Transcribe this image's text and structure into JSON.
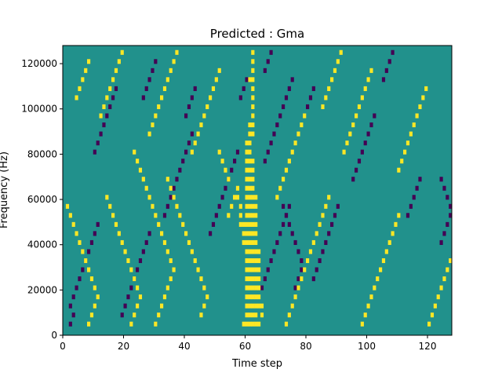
{
  "chart_data": {
    "type": "heatmap",
    "title": "Predicted : Gma",
    "xlabel": "Time step",
    "ylabel": "Frequency (Hz)",
    "xlim": [
      0,
      128
    ],
    "ylim": [
      0,
      128000
    ],
    "x_ticks": [
      0,
      20,
      40,
      60,
      80,
      100,
      120
    ],
    "y_ticks": [
      0,
      20000,
      40000,
      60000,
      80000,
      100000,
      120000
    ],
    "x_tick_labels": [
      "0",
      "20",
      "40",
      "60",
      "80",
      "100",
      "120"
    ],
    "y_tick_labels": [
      "0",
      "20000",
      "40000",
      "60000",
      "80000",
      "100000",
      "120000"
    ],
    "grid": false,
    "colors": {
      "low": "#440154",
      "mid": "#21918c",
      "high": "#fde725"
    },
    "background_value": 0,
    "value_levels": [
      -1,
      0,
      1
    ],
    "n_time_steps": 128,
    "n_freq_bins": 64,
    "high_cells": [
      [
        59,
        2
      ],
      [
        60,
        2
      ],
      [
        61,
        2
      ],
      [
        62,
        2
      ],
      [
        63,
        2
      ],
      [
        64,
        2
      ],
      [
        60,
        4
      ],
      [
        61,
        4
      ],
      [
        62,
        4
      ],
      [
        63,
        4
      ],
      [
        60,
        6
      ],
      [
        61,
        6
      ],
      [
        62,
        6
      ],
      [
        63,
        6
      ],
      [
        60,
        8
      ],
      [
        61,
        8
      ],
      [
        62,
        8
      ],
      [
        63,
        8
      ],
      [
        60,
        10
      ],
      [
        61,
        10
      ],
      [
        62,
        10
      ],
      [
        63,
        10
      ],
      [
        60,
        12
      ],
      [
        61,
        12
      ],
      [
        62,
        12
      ],
      [
        63,
        12
      ],
      [
        60,
        14
      ],
      [
        61,
        14
      ],
      [
        62,
        14
      ],
      [
        63,
        14
      ],
      [
        60,
        16
      ],
      [
        61,
        16
      ],
      [
        62,
        16
      ],
      [
        63,
        16
      ],
      [
        60,
        18
      ],
      [
        61,
        18
      ],
      [
        62,
        18
      ],
      [
        63,
        18
      ],
      [
        60,
        20
      ],
      [
        61,
        20
      ],
      [
        62,
        20
      ],
      [
        63,
        20
      ],
      [
        60,
        22
      ],
      [
        61,
        22
      ],
      [
        62,
        22
      ],
      [
        60,
        24
      ],
      [
        61,
        24
      ],
      [
        62,
        24
      ],
      [
        60,
        26
      ],
      [
        61,
        26
      ],
      [
        62,
        26
      ],
      [
        60,
        28
      ],
      [
        61,
        28
      ],
      [
        62,
        28
      ],
      [
        60,
        30
      ],
      [
        61,
        30
      ],
      [
        62,
        30
      ],
      [
        60,
        32
      ],
      [
        61,
        32
      ],
      [
        62,
        32
      ],
      [
        60,
        34
      ],
      [
        61,
        34
      ],
      [
        62,
        34
      ],
      [
        60,
        36
      ],
      [
        61,
        36
      ],
      [
        62,
        36
      ],
      [
        60,
        38
      ],
      [
        61,
        38
      ],
      [
        62,
        38
      ],
      [
        60,
        40
      ],
      [
        61,
        40
      ],
      [
        60,
        42
      ],
      [
        61,
        42
      ],
      [
        61,
        44
      ],
      [
        61,
        46
      ],
      [
        62,
        44
      ],
      [
        62,
        46
      ],
      [
        62,
        48
      ],
      [
        62,
        50
      ],
      [
        62,
        52
      ],
      [
        63,
        22
      ],
      [
        63,
        24
      ],
      [
        63,
        26
      ],
      [
        63,
        28
      ],
      [
        63,
        30
      ],
      [
        64,
        6
      ],
      [
        64,
        8
      ],
      [
        64,
        10
      ],
      [
        64,
        12
      ],
      [
        64,
        14
      ],
      [
        64,
        16
      ],
      [
        64,
        18
      ],
      [
        65,
        4
      ],
      [
        65,
        6
      ],
      [
        59,
        20
      ],
      [
        59,
        22
      ],
      [
        59,
        24
      ],
      [
        57,
        30
      ],
      [
        57,
        32
      ],
      [
        58,
        24
      ],
      [
        58,
        26
      ],
      [
        58,
        28
      ],
      [
        62,
        54
      ],
      [
        61,
        56
      ],
      [
        62,
        56
      ],
      [
        62,
        58
      ],
      [
        62,
        60
      ],
      [
        62,
        62
      ],
      [
        30,
        2
      ],
      [
        31,
        4
      ],
      [
        32,
        6
      ],
      [
        33,
        8
      ],
      [
        34,
        10
      ],
      [
        35,
        12
      ],
      [
        36,
        14
      ],
      [
        35,
        16
      ],
      [
        34,
        18
      ],
      [
        33,
        20
      ],
      [
        32,
        22
      ],
      [
        31,
        24
      ],
      [
        30,
        26
      ],
      [
        29,
        28
      ],
      [
        28,
        30
      ],
      [
        27,
        32
      ],
      [
        26,
        34
      ],
      [
        25,
        36
      ],
      [
        24,
        38
      ],
      [
        23,
        40
      ],
      [
        22,
        2
      ],
      [
        23,
        4
      ],
      [
        24,
        6
      ],
      [
        25,
        8
      ],
      [
        24,
        10
      ],
      [
        23,
        12
      ],
      [
        22,
        14
      ],
      [
        21,
        16
      ],
      [
        20,
        18
      ],
      [
        19,
        20
      ],
      [
        18,
        22
      ],
      [
        17,
        24
      ],
      [
        16,
        26
      ],
      [
        15,
        28
      ],
      [
        14,
        30
      ],
      [
        8,
        2
      ],
      [
        9,
        4
      ],
      [
        10,
        6
      ],
      [
        11,
        8
      ],
      [
        10,
        10
      ],
      [
        9,
        12
      ],
      [
        8,
        14
      ],
      [
        7,
        16
      ],
      [
        6,
        18
      ],
      [
        5,
        20
      ],
      [
        4,
        22
      ],
      [
        3,
        24
      ],
      [
        2,
        26
      ],
      [
        1,
        28
      ],
      [
        45,
        4
      ],
      [
        46,
        6
      ],
      [
        47,
        8
      ],
      [
        46,
        10
      ],
      [
        45,
        12
      ],
      [
        44,
        14
      ],
      [
        43,
        16
      ],
      [
        42,
        18
      ],
      [
        41,
        20
      ],
      [
        40,
        22
      ],
      [
        39,
        24
      ],
      [
        38,
        26
      ],
      [
        37,
        28
      ],
      [
        36,
        30
      ],
      [
        35,
        32
      ],
      [
        34,
        34
      ],
      [
        73,
        2
      ],
      [
        74,
        4
      ],
      [
        75,
        6
      ],
      [
        76,
        8
      ],
      [
        77,
        10
      ],
      [
        78,
        12
      ],
      [
        79,
        14
      ],
      [
        80,
        16
      ],
      [
        81,
        18
      ],
      [
        82,
        20
      ],
      [
        83,
        22
      ],
      [
        84,
        24
      ],
      [
        85,
        26
      ],
      [
        86,
        28
      ],
      [
        87,
        30
      ],
      [
        98,
        2
      ],
      [
        99,
        4
      ],
      [
        100,
        6
      ],
      [
        101,
        8
      ],
      [
        102,
        10
      ],
      [
        103,
        12
      ],
      [
        104,
        14
      ],
      [
        105,
        16
      ],
      [
        106,
        18
      ],
      [
        107,
        20
      ],
      [
        108,
        22
      ],
      [
        109,
        24
      ],
      [
        110,
        26
      ],
      [
        120,
        2
      ],
      [
        121,
        4
      ],
      [
        122,
        6
      ],
      [
        123,
        8
      ],
      [
        124,
        10
      ],
      [
        125,
        12
      ],
      [
        126,
        14
      ],
      [
        127,
        16
      ],
      [
        4,
        52
      ],
      [
        5,
        54
      ],
      [
        6,
        56
      ],
      [
        7,
        58
      ],
      [
        8,
        60
      ],
      [
        12,
        48
      ],
      [
        13,
        50
      ],
      [
        14,
        52
      ],
      [
        15,
        54
      ],
      [
        16,
        56
      ],
      [
        17,
        58
      ],
      [
        18,
        60
      ],
      [
        19,
        62
      ],
      [
        28,
        44
      ],
      [
        29,
        46
      ],
      [
        30,
        48
      ],
      [
        31,
        50
      ],
      [
        32,
        52
      ],
      [
        33,
        54
      ],
      [
        34,
        56
      ],
      [
        35,
        58
      ],
      [
        36,
        60
      ],
      [
        37,
        62
      ],
      [
        42,
        40
      ],
      [
        43,
        42
      ],
      [
        44,
        44
      ],
      [
        45,
        46
      ],
      [
        46,
        48
      ],
      [
        47,
        50
      ],
      [
        48,
        52
      ],
      [
        49,
        54
      ],
      [
        50,
        56
      ],
      [
        51,
        58
      ],
      [
        92,
        40
      ],
      [
        93,
        42
      ],
      [
        94,
        44
      ],
      [
        95,
        46
      ],
      [
        96,
        48
      ],
      [
        97,
        50
      ],
      [
        98,
        52
      ],
      [
        99,
        54
      ],
      [
        100,
        56
      ],
      [
        101,
        58
      ],
      [
        110,
        36
      ],
      [
        111,
        38
      ],
      [
        112,
        40
      ],
      [
        113,
        42
      ],
      [
        114,
        44
      ],
      [
        115,
        46
      ],
      [
        116,
        48
      ],
      [
        117,
        50
      ],
      [
        118,
        52
      ],
      [
        119,
        54
      ],
      [
        70,
        30
      ],
      [
        71,
        32
      ],
      [
        72,
        34
      ],
      [
        73,
        36
      ],
      [
        74,
        38
      ],
      [
        75,
        40
      ],
      [
        76,
        42
      ],
      [
        77,
        44
      ],
      [
        78,
        46
      ],
      [
        79,
        48
      ],
      [
        85,
        50
      ],
      [
        86,
        52
      ],
      [
        87,
        54
      ],
      [
        88,
        56
      ],
      [
        89,
        58
      ],
      [
        90,
        60
      ],
      [
        91,
        62
      ],
      [
        54,
        26
      ],
      [
        55,
        28
      ],
      [
        56,
        30
      ],
      [
        54,
        34
      ],
      [
        53,
        36
      ],
      [
        52,
        38
      ],
      [
        51,
        40
      ]
    ],
    "low_cells": [
      [
        65,
        10
      ],
      [
        66,
        12
      ],
      [
        67,
        14
      ],
      [
        68,
        16
      ],
      [
        69,
        18
      ],
      [
        70,
        20
      ],
      [
        71,
        22
      ],
      [
        72,
        24
      ],
      [
        73,
        26
      ],
      [
        74,
        28
      ],
      [
        76,
        10
      ],
      [
        77,
        12
      ],
      [
        78,
        14
      ],
      [
        78,
        16
      ],
      [
        77,
        18
      ],
      [
        76,
        20
      ],
      [
        75,
        22
      ],
      [
        74,
        24
      ],
      [
        73,
        26
      ],
      [
        72,
        28
      ],
      [
        2,
        2
      ],
      [
        3,
        4
      ],
      [
        2,
        6
      ],
      [
        3,
        8
      ],
      [
        4,
        10
      ],
      [
        5,
        12
      ],
      [
        6,
        14
      ],
      [
        7,
        16
      ],
      [
        8,
        18
      ],
      [
        9,
        20
      ],
      [
        10,
        22
      ],
      [
        11,
        24
      ],
      [
        19,
        4
      ],
      [
        20,
        6
      ],
      [
        21,
        8
      ],
      [
        22,
        10
      ],
      [
        23,
        12
      ],
      [
        24,
        14
      ],
      [
        25,
        16
      ],
      [
        26,
        18
      ],
      [
        27,
        20
      ],
      [
        28,
        22
      ],
      [
        33,
        26
      ],
      [
        34,
        28
      ],
      [
        35,
        30
      ],
      [
        36,
        32
      ],
      [
        37,
        34
      ],
      [
        38,
        36
      ],
      [
        39,
        38
      ],
      [
        40,
        40
      ],
      [
        41,
        42
      ],
      [
        42,
        44
      ],
      [
        48,
        22
      ],
      [
        49,
        24
      ],
      [
        50,
        26
      ],
      [
        51,
        28
      ],
      [
        52,
        30
      ],
      [
        53,
        32
      ],
      [
        54,
        34
      ],
      [
        55,
        36
      ],
      [
        56,
        38
      ],
      [
        57,
        40
      ],
      [
        66,
        38
      ],
      [
        67,
        40
      ],
      [
        68,
        42
      ],
      [
        69,
        44
      ],
      [
        70,
        46
      ],
      [
        71,
        48
      ],
      [
        72,
        50
      ],
      [
        73,
        52
      ],
      [
        74,
        54
      ],
      [
        75,
        56
      ],
      [
        82,
        12
      ],
      [
        83,
        14
      ],
      [
        84,
        16
      ],
      [
        85,
        18
      ],
      [
        86,
        20
      ],
      [
        87,
        22
      ],
      [
        88,
        24
      ],
      [
        89,
        26
      ],
      [
        90,
        28
      ],
      [
        95,
        34
      ],
      [
        96,
        36
      ],
      [
        97,
        38
      ],
      [
        98,
        40
      ],
      [
        99,
        42
      ],
      [
        100,
        44
      ],
      [
        101,
        46
      ],
      [
        102,
        48
      ],
      [
        105,
        56
      ],
      [
        106,
        58
      ],
      [
        107,
        60
      ],
      [
        108,
        62
      ],
      [
        113,
        26
      ],
      [
        114,
        28
      ],
      [
        115,
        30
      ],
      [
        116,
        32
      ],
      [
        117,
        34
      ],
      [
        124,
        20
      ],
      [
        125,
        22
      ],
      [
        126,
        24
      ],
      [
        127,
        26
      ],
      [
        127,
        28
      ],
      [
        126,
        30
      ],
      [
        125,
        32
      ],
      [
        124,
        34
      ],
      [
        10,
        40
      ],
      [
        11,
        42
      ],
      [
        12,
        44
      ],
      [
        13,
        46
      ],
      [
        14,
        48
      ],
      [
        15,
        50
      ],
      [
        16,
        52
      ],
      [
        17,
        54
      ],
      [
        26,
        52
      ],
      [
        27,
        54
      ],
      [
        28,
        56
      ],
      [
        29,
        58
      ],
      [
        30,
        60
      ],
      [
        40,
        48
      ],
      [
        41,
        50
      ],
      [
        42,
        52
      ],
      [
        43,
        54
      ],
      [
        58,
        52
      ],
      [
        59,
        54
      ],
      [
        60,
        56
      ],
      [
        66,
        58
      ],
      [
        67,
        60
      ],
      [
        68,
        62
      ],
      [
        80,
        50
      ],
      [
        81,
        52
      ],
      [
        82,
        54
      ]
    ]
  }
}
